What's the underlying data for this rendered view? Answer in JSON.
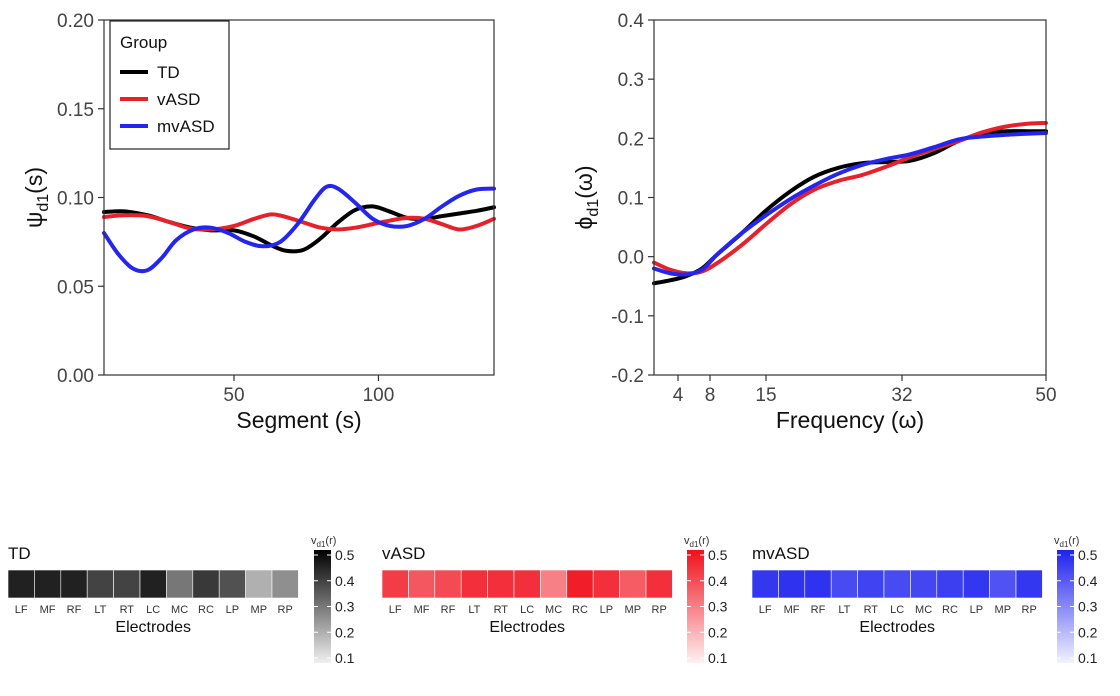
{
  "chart_data": [
    {
      "type": "line",
      "xlabel": "Segment (s)",
      "ylabel_main": "ψ",
      "ylabel_sub": "d1",
      "ylabel_tail": "(s)",
      "xlim": [
        5,
        140
      ],
      "ylim": [
        0,
        0.2
      ],
      "xticks": [
        50,
        100
      ],
      "yticks": [
        0.0,
        0.05,
        0.1,
        0.15,
        0.2
      ],
      "ytick_labels": [
        "0.00",
        "0.05",
        "0.10",
        "0.15",
        "0.20"
      ],
      "legend": {
        "title": "Group",
        "placement": "top-left"
      },
      "series": [
        {
          "name": "TD",
          "color": "#000000",
          "x": [
            5,
            12,
            20,
            28,
            35,
            42,
            50,
            57,
            63,
            68,
            74,
            80,
            86,
            92,
            98,
            104,
            110,
            116,
            122,
            128,
            134,
            140
          ],
          "y": [
            0.0918,
            0.0922,
            0.09,
            0.086,
            0.083,
            0.0815,
            0.0815,
            0.078,
            0.073,
            0.07,
            0.0705,
            0.077,
            0.086,
            0.093,
            0.095,
            0.092,
            0.0885,
            0.088,
            0.0895,
            0.091,
            0.0925,
            0.0945
          ]
        },
        {
          "name": "vASD",
          "color": "#e8202a",
          "x": [
            5,
            12,
            20,
            28,
            35,
            42,
            50,
            57,
            63,
            68,
            74,
            80,
            86,
            92,
            98,
            104,
            110,
            116,
            122,
            128,
            134,
            140
          ],
          "y": [
            0.089,
            0.09,
            0.0895,
            0.086,
            0.0825,
            0.082,
            0.084,
            0.088,
            0.0905,
            0.089,
            0.086,
            0.083,
            0.082,
            0.083,
            0.085,
            0.087,
            0.0885,
            0.088,
            0.085,
            0.082,
            0.084,
            0.088
          ]
        },
        {
          "name": "mvASD",
          "color": "#2426f0",
          "x": [
            5,
            10,
            15,
            20,
            25,
            30,
            36,
            42,
            48,
            54,
            60,
            66,
            72,
            78,
            82,
            86,
            92,
            98,
            104,
            110,
            116,
            122,
            128,
            134,
            140
          ],
          "y": [
            0.08,
            0.068,
            0.06,
            0.059,
            0.066,
            0.076,
            0.082,
            0.083,
            0.08,
            0.075,
            0.0725,
            0.075,
            0.085,
            0.099,
            0.106,
            0.105,
            0.097,
            0.088,
            0.084,
            0.084,
            0.088,
            0.095,
            0.101,
            0.1045,
            0.105
          ]
        }
      ]
    },
    {
      "type": "line",
      "xlabel": "Frequency (ω)",
      "ylabel_main": "ϕ",
      "ylabel_sub": "d1",
      "ylabel_tail": "(ω)",
      "xlim": [
        1,
        50
      ],
      "ylim": [
        -0.2,
        0.4
      ],
      "xticks": [
        4,
        8,
        15,
        32,
        50
      ],
      "yticks": [
        -0.2,
        -0.1,
        0.0,
        0.1,
        0.2,
        0.3,
        0.4
      ],
      "ytick_labels": [
        "-0.2",
        "-0.1",
        "0.0",
        "0.1",
        "0.2",
        "0.3",
        "0.4"
      ],
      "series": [
        {
          "name": "TD",
          "color": "#000000",
          "x": [
            1,
            3,
            5,
            7,
            9,
            12,
            15,
            18,
            21,
            24,
            27,
            30,
            33,
            36,
            39,
            42,
            45,
            48,
            50
          ],
          "y": [
            -0.045,
            -0.04,
            -0.033,
            -0.02,
            0.005,
            0.04,
            0.078,
            0.11,
            0.135,
            0.15,
            0.158,
            0.16,
            0.162,
            0.175,
            0.195,
            0.208,
            0.212,
            0.212,
            0.212
          ]
        },
        {
          "name": "vASD",
          "color": "#e8202a",
          "x": [
            1,
            3,
            5,
            7,
            9,
            12,
            15,
            18,
            21,
            24,
            27,
            30,
            33,
            36,
            39,
            42,
            45,
            48,
            50
          ],
          "y": [
            -0.01,
            -0.022,
            -0.028,
            -0.025,
            -0.01,
            0.02,
            0.055,
            0.088,
            0.113,
            0.128,
            0.138,
            0.152,
            0.168,
            0.182,
            0.195,
            0.21,
            0.22,
            0.225,
            0.226
          ]
        },
        {
          "name": "mvASD",
          "color": "#2426f0",
          "x": [
            1,
            3,
            5,
            7,
            9,
            12,
            15,
            18,
            21,
            24,
            27,
            30,
            33,
            36,
            39,
            42,
            45,
            48,
            50
          ],
          "y": [
            -0.02,
            -0.028,
            -0.03,
            -0.022,
            0.005,
            0.04,
            0.07,
            0.097,
            0.12,
            0.14,
            0.155,
            0.165,
            0.173,
            0.185,
            0.198,
            0.203,
            0.206,
            0.208,
            0.209
          ]
        }
      ]
    },
    {
      "type": "heatmap",
      "title": "TD",
      "xlabel": "Electrodes",
      "categories": [
        "LF",
        "MF",
        "RF",
        "LT",
        "RT",
        "LC",
        "MC",
        "RC",
        "LP",
        "MP",
        "RP"
      ],
      "values": [
        0.45,
        0.45,
        0.45,
        0.38,
        0.38,
        0.45,
        0.27,
        0.4,
        0.35,
        0.15,
        0.22
      ],
      "color": "#000000",
      "scale_label_main": "v",
      "scale_label_sub": "d1",
      "scale_label_tail": "(r)",
      "scale_ticks": [
        0.1,
        0.2,
        0.3,
        0.4,
        0.5
      ],
      "scale_tick_labels": [
        "0.1",
        "0.2",
        "0.3",
        "0.4",
        "0.5"
      ]
    },
    {
      "type": "heatmap",
      "title": "vASD",
      "xlabel": "Electrodes",
      "categories": [
        "LF",
        "MF",
        "RF",
        "LT",
        "RT",
        "LC",
        "MC",
        "RC",
        "LP",
        "MP",
        "RP"
      ],
      "values": [
        0.42,
        0.36,
        0.39,
        0.45,
        0.45,
        0.45,
        0.27,
        0.49,
        0.45,
        0.35,
        0.45
      ],
      "color": "#f0101c",
      "scale_label_main": "v",
      "scale_label_sub": "d1",
      "scale_label_tail": "(r)",
      "scale_ticks": [
        0.1,
        0.2,
        0.3,
        0.4,
        0.5
      ],
      "scale_tick_labels": [
        "0.1",
        "0.2",
        "0.3",
        "0.4",
        "0.5"
      ]
    },
    {
      "type": "heatmap",
      "title": "mvASD",
      "xlabel": "Electrodes",
      "categories": [
        "LF",
        "MF",
        "RF",
        "LT",
        "RT",
        "LC",
        "MC",
        "RC",
        "LP",
        "MP",
        "RP"
      ],
      "values": [
        0.47,
        0.48,
        0.48,
        0.42,
        0.44,
        0.42,
        0.43,
        0.45,
        0.47,
        0.4,
        0.47
      ],
      "color": "#1e22ee",
      "scale_label_main": "v",
      "scale_label_sub": "d1",
      "scale_label_tail": "(r)",
      "scale_ticks": [
        0.1,
        0.2,
        0.3,
        0.4,
        0.5
      ],
      "scale_tick_labels": [
        "0.1",
        "0.2",
        "0.3",
        "0.4",
        "0.5"
      ]
    }
  ]
}
